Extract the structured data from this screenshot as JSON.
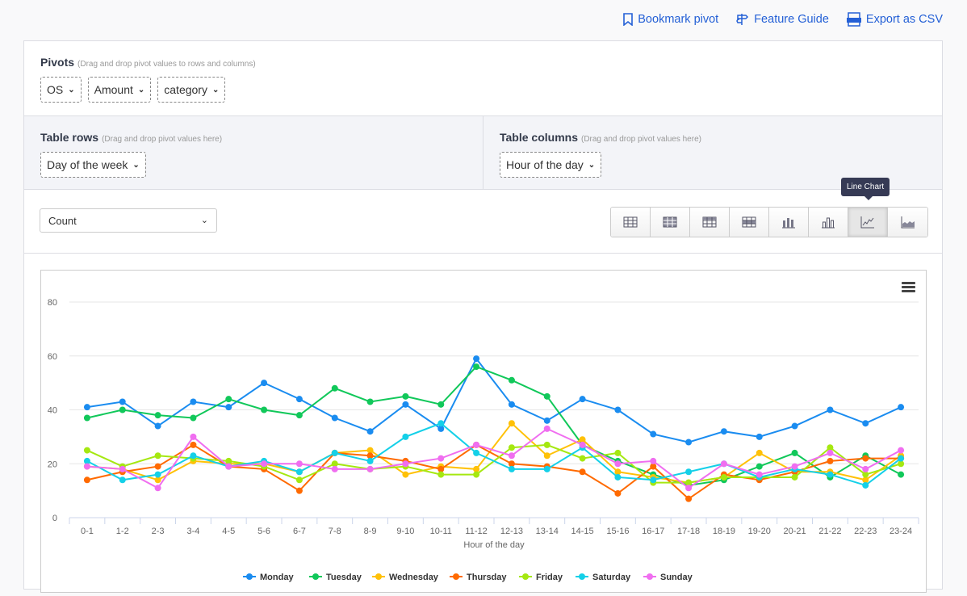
{
  "links": {
    "bookmark": "Bookmark pivot",
    "guide": "Feature Guide",
    "export": "Export as CSV",
    "csv_badge": "CSV"
  },
  "pivots": {
    "title": "Pivots",
    "hint": "(Drag and drop pivot values to rows and columns)",
    "items": [
      "OS",
      "Amount",
      "category"
    ]
  },
  "rows": {
    "title": "Table rows",
    "hint": "(Drag and drop pivot values here)",
    "value": "Day of the week"
  },
  "columns": {
    "title": "Table columns",
    "hint": "(Drag and drop pivot values here)",
    "value": "Hour of the day"
  },
  "aggregate": {
    "value": "Count"
  },
  "tooltip": "Line Chart",
  "view_buttons": [
    "table",
    "table-heatmap",
    "table-col-heatmap",
    "table-row-heatmap",
    "stacked-bar",
    "bar",
    "line",
    "area"
  ],
  "chart_data": {
    "type": "line",
    "xlabel": "Hour of the day",
    "ylabel": "",
    "ylim": [
      0,
      80
    ],
    "yticks": [
      0,
      20,
      40,
      60,
      80
    ],
    "categories": [
      "0-1",
      "1-2",
      "2-3",
      "3-4",
      "4-5",
      "5-6",
      "6-7",
      "7-8",
      "8-9",
      "9-10",
      "10-11",
      "11-12",
      "12-13",
      "13-14",
      "14-15",
      "15-16",
      "16-17",
      "17-18",
      "18-19",
      "19-20",
      "20-21",
      "21-22",
      "22-23",
      "23-24"
    ],
    "legend": "bottom",
    "series": [
      {
        "name": "Monday",
        "color": "#1a8cf0",
        "values": [
          41,
          43,
          34,
          43,
          41,
          50,
          44,
          37,
          32,
          42,
          33,
          59,
          42,
          36,
          44,
          40,
          31,
          28,
          32,
          30,
          34,
          40,
          35,
          41
        ]
      },
      {
        "name": "Tuesday",
        "color": "#11c85a",
        "values": [
          37,
          40,
          38,
          37,
          44,
          40,
          38,
          48,
          43,
          45,
          42,
          56,
          51,
          45,
          27,
          21,
          16,
          12,
          14,
          19,
          24,
          15,
          23,
          16
        ]
      },
      {
        "name": "Wednesday",
        "color": "#ffc107",
        "values": [
          19,
          18,
          14,
          21,
          20,
          20,
          17,
          24,
          25,
          16,
          19,
          18,
          35,
          23,
          29,
          17,
          15,
          13,
          15,
          24,
          17,
          17,
          14,
          23
        ]
      },
      {
        "name": "Thursday",
        "color": "#ff6a00",
        "values": [
          14,
          17,
          19,
          27,
          19,
          18,
          10,
          24,
          23,
          21,
          18,
          27,
          20,
          19,
          17,
          9,
          19,
          7,
          16,
          14,
          17,
          21,
          22,
          22
        ]
      },
      {
        "name": "Friday",
        "color": "#a5e810",
        "values": [
          25,
          19,
          23,
          22,
          21,
          19,
          14,
          20,
          18,
          19,
          16,
          16,
          26,
          27,
          22,
          24,
          13,
          13,
          15,
          15,
          15,
          26,
          16,
          20
        ]
      },
      {
        "name": "Saturday",
        "color": "#14d0e8",
        "values": [
          21,
          14,
          16,
          23,
          19,
          21,
          17,
          24,
          21,
          30,
          35,
          24,
          18,
          18,
          26,
          15,
          14,
          17,
          20,
          15,
          18,
          16,
          12,
          22
        ]
      },
      {
        "name": "Sunday",
        "color": "#f06ef0",
        "values": [
          19,
          18,
          11,
          30,
          19,
          20,
          20,
          18,
          18,
          20,
          22,
          27,
          23,
          33,
          27,
          20,
          21,
          11,
          20,
          16,
          19,
          24,
          18,
          25
        ]
      }
    ]
  }
}
